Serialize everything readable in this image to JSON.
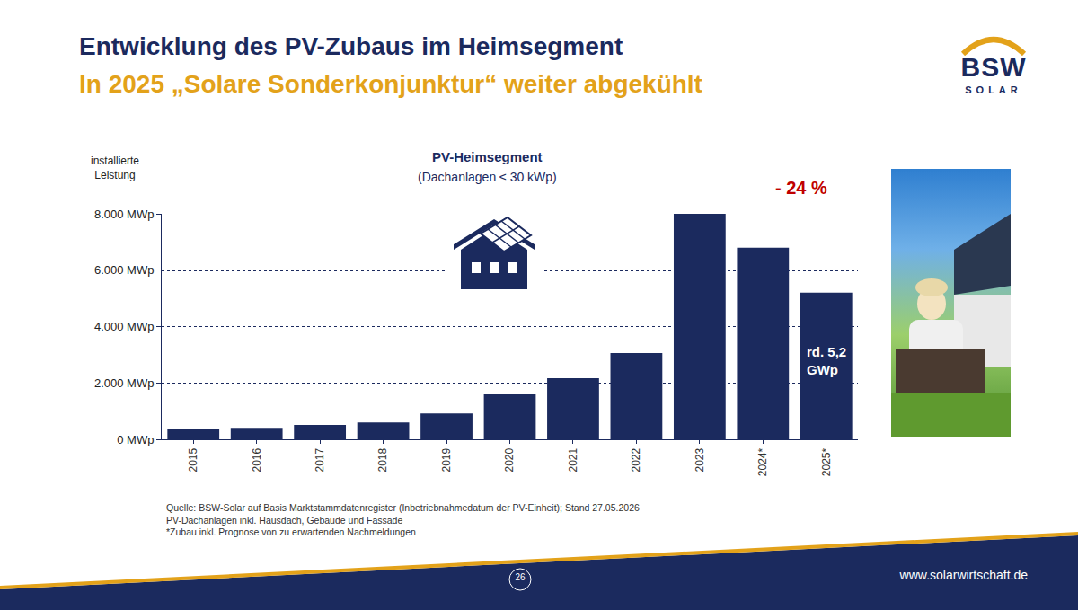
{
  "header": {
    "title": "Entwicklung des PV-Zubaus im Heimsegment",
    "subtitle": "In 2025 „Solare Sonderkonjunktur“ weiter abgekühlt"
  },
  "logo": {
    "name": "BSW",
    "tagline": "SOLAR"
  },
  "chart_data": {
    "type": "bar",
    "title": "PV-Heimsegment",
    "subtitle": "(Dachanlagen ≤ 30 kWp)",
    "y_label": "installierte Leistung",
    "categories": [
      "2015",
      "2016",
      "2017",
      "2018",
      "2019",
      "2020",
      "2021",
      "2022",
      "2023",
      "2024*",
      "2025*"
    ],
    "values": [
      380,
      410,
      510,
      600,
      920,
      1590,
      2170,
      3060,
      8000,
      6800,
      5200
    ],
    "color": "#1b2a5e",
    "ylim": [
      0,
      8000
    ],
    "yticks": [
      {
        "value": 0,
        "label": "0 MWp"
      },
      {
        "value": 2000,
        "label": "2.000 MWp"
      },
      {
        "value": 4000,
        "label": "4.000 MWp"
      },
      {
        "value": 6000,
        "label": "6.000 MWp"
      },
      {
        "value": 8000,
        "label": "8.000 MWp"
      }
    ],
    "grid": true,
    "annotations": [
      {
        "category": "2025*",
        "text": "- 24 %"
      },
      {
        "category": "2025*",
        "text": "rd. 5,2 GWp"
      }
    ]
  },
  "notes": [
    "Quelle: BSW-Solar auf Basis Marktstammdatenregister (Inbetriebnahmedatum der PV-Einheit); Stand 27.05.2026",
    "PV-Dachanlagen inkl. Hausdach, Gebäude und Fassade",
    "*Zubau inkl. Prognose von zu erwartenden Nachmeldungen"
  ],
  "footer": {
    "page": "26",
    "url": "www.solarwirtschaft.de"
  }
}
